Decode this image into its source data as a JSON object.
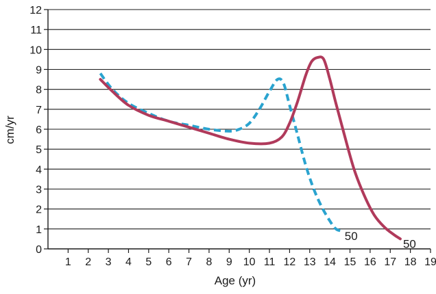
{
  "chart_data": {
    "type": "line",
    "title": "",
    "xlabel": "Age (yr)",
    "ylabel": "cm/yr",
    "xlim": [
      0,
      19
    ],
    "ylim": [
      0,
      12
    ],
    "x_ticks": [
      1,
      2,
      3,
      4,
      5,
      6,
      7,
      8,
      9,
      10,
      11,
      12,
      13,
      14,
      15,
      16,
      17,
      18,
      19
    ],
    "y_ticks": [
      0,
      1,
      2,
      3,
      4,
      5,
      6,
      7,
      8,
      9,
      10,
      11,
      12
    ],
    "grid": "horizontal",
    "series": [
      {
        "name": "",
        "end_label": "50",
        "color": "#b03a5b",
        "style": "solid",
        "x": [
          2.6,
          3.2,
          4,
          5,
          6,
          7,
          8,
          9,
          10,
          11,
          11.6,
          12,
          12.4,
          12.8,
          13.1,
          13.4,
          13.7,
          14,
          14.3,
          14.7,
          15.2,
          15.7,
          16.2,
          16.7,
          17.2,
          17.5
        ],
        "y": [
          8.5,
          7.9,
          7.2,
          6.7,
          6.4,
          6.1,
          5.8,
          5.5,
          5.3,
          5.3,
          5.6,
          6.3,
          7.4,
          8.7,
          9.4,
          9.6,
          9.5,
          8.5,
          7.3,
          5.8,
          4.0,
          2.7,
          1.7,
          1.1,
          0.7,
          0.5
        ]
      },
      {
        "name": "",
        "end_label": "50",
        "color": "#2aa3cf",
        "style": "dashed",
        "x": [
          2.6,
          3.2,
          4,
          5,
          6,
          7,
          8,
          9,
          9.5,
          10,
          10.5,
          11,
          11.4,
          11.7,
          12,
          12.4,
          12.8,
          13.2,
          13.6,
          14,
          14.3,
          14.6
        ],
        "y": [
          8.8,
          8.0,
          7.3,
          6.8,
          6.4,
          6.2,
          6.0,
          5.9,
          6.0,
          6.3,
          7.0,
          7.9,
          8.5,
          8.3,
          7.2,
          5.7,
          4.2,
          3.0,
          2.1,
          1.4,
          1.0,
          0.9
        ]
      }
    ]
  }
}
